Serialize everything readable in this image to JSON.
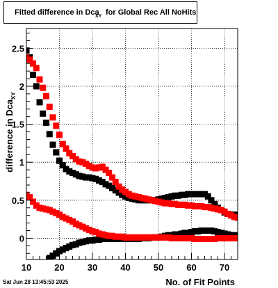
{
  "title": {
    "main": "Fitted difference in Dca",
    "sub": "XY",
    "rest": " for Global Rec All NoHits"
  },
  "footer": {
    "date": "Sat Jun 28 13:45:53 2025"
  },
  "colors": {
    "series_black": "#000000",
    "series_red": "#ff0000",
    "grid": "#000000",
    "frame": "#000000"
  },
  "chart_data": {
    "type": "scatter",
    "title": "Fitted difference in Dca XY for Global Rec All NoHits",
    "xlabel": "No. of Fit Points",
    "ylabel": "difference in Dca",
    "ylabel_sub": "XY",
    "xlim": [
      10,
      74
    ],
    "ylim": [
      -0.28,
      2.76
    ],
    "xticks": [
      10,
      20,
      30,
      40,
      50,
      60,
      70
    ],
    "yticks": [
      0,
      0.5,
      1,
      1.5,
      2,
      2.5
    ],
    "ytick_labels": [
      "0",
      "0.5",
      "1",
      "1.5",
      "2",
      "2.5"
    ],
    "grid": true,
    "marker": "square",
    "series": [
      {
        "color": "#000000",
        "x": [
          10,
          11,
          12,
          13,
          14,
          15,
          16,
          17,
          18,
          19,
          20,
          21,
          22,
          23,
          24,
          25,
          26,
          27,
          28,
          29,
          30,
          31,
          32,
          33,
          34,
          35,
          36,
          37,
          38,
          39,
          40,
          41,
          42,
          43,
          44,
          45,
          46,
          47,
          48,
          49,
          50,
          51,
          52,
          53,
          54,
          55,
          56,
          57,
          58,
          59,
          60,
          61,
          62,
          63,
          64,
          65,
          66,
          67,
          68,
          69,
          70,
          71,
          72,
          73,
          74
        ],
        "values": [
          2.47,
          2.38,
          2.15,
          2.0,
          1.79,
          1.64,
          1.52,
          1.37,
          1.23,
          1.13,
          1.02,
          0.96,
          0.91,
          0.88,
          0.86,
          0.84,
          0.82,
          0.81,
          0.8,
          0.8,
          0.79,
          0.78,
          0.76,
          0.74,
          0.71,
          0.69,
          0.66,
          0.63,
          0.6,
          0.57,
          0.55,
          0.53,
          0.52,
          0.51,
          0.5,
          0.5,
          0.5,
          0.5,
          0.5,
          0.5,
          0.51,
          0.52,
          0.53,
          0.54,
          0.55,
          0.56,
          0.56,
          0.57,
          0.57,
          0.58,
          0.58,
          0.58,
          0.58,
          0.58,
          0.58,
          0.55,
          0.5,
          0.45,
          0.4,
          0.37,
          0.34,
          0.32,
          0.31,
          0.31,
          0.3
        ]
      },
      {
        "color": "#000000",
        "x": [
          17,
          18,
          19,
          20,
          21,
          22,
          23,
          24,
          25,
          26,
          27,
          28,
          29,
          30,
          31,
          32,
          33,
          34,
          35,
          36,
          37,
          38,
          39,
          40,
          41,
          42,
          43,
          44,
          45,
          46,
          47,
          48,
          49,
          50,
          51,
          52,
          53,
          54,
          55,
          56,
          57,
          58,
          59,
          60,
          61,
          62,
          63,
          64,
          65,
          66,
          67,
          68,
          69,
          70,
          71,
          72,
          73,
          74
        ],
        "values": [
          -0.26,
          -0.23,
          -0.2,
          -0.17,
          -0.15,
          -0.13,
          -0.11,
          -0.09,
          -0.08,
          -0.06,
          -0.05,
          -0.04,
          -0.03,
          -0.03,
          -0.02,
          -0.02,
          -0.01,
          -0.01,
          -0.01,
          -0.01,
          -0.01,
          -0.01,
          -0.01,
          -0.01,
          -0.01,
          -0.01,
          -0.01,
          -0.01,
          0.0,
          0.0,
          0.0,
          0.01,
          0.01,
          0.01,
          0.02,
          0.03,
          0.04,
          0.04,
          0.05,
          0.05,
          0.06,
          0.07,
          0.07,
          0.08,
          0.09,
          0.09,
          0.1,
          0.1,
          0.1,
          0.1,
          0.09,
          0.08,
          0.07,
          0.06,
          0.05,
          0.04,
          0.04,
          0.04
        ]
      },
      {
        "color": "#ff0000",
        "x": [
          10,
          11,
          12,
          13,
          14,
          15,
          16,
          17,
          18,
          19,
          20,
          21,
          22,
          23,
          24,
          25,
          26,
          27,
          28,
          29,
          30,
          31,
          32,
          33,
          34,
          35,
          36,
          37,
          38,
          39,
          40,
          41,
          42,
          43,
          44,
          45,
          46,
          47,
          48,
          49,
          50,
          51,
          52,
          53,
          54,
          55,
          56,
          57,
          58,
          59,
          60,
          61,
          62,
          63,
          64,
          65,
          66,
          67,
          68,
          69,
          70,
          71,
          72,
          73,
          74
        ],
        "values": [
          2.38,
          2.35,
          2.3,
          2.24,
          2.09,
          1.98,
          1.87,
          1.73,
          1.59,
          1.48,
          1.36,
          1.24,
          1.18,
          1.12,
          1.08,
          1.04,
          1.01,
          1.0,
          0.98,
          0.95,
          0.93,
          0.92,
          0.93,
          0.94,
          0.9,
          0.86,
          0.8,
          0.74,
          0.68,
          0.64,
          0.61,
          0.58,
          0.56,
          0.55,
          0.54,
          0.53,
          0.52,
          0.51,
          0.5,
          0.49,
          0.48,
          0.47,
          0.46,
          0.46,
          0.45,
          0.45,
          0.44,
          0.44,
          0.44,
          0.43,
          0.43,
          0.42,
          0.42,
          0.42,
          0.41,
          0.41,
          0.4,
          0.39,
          0.38,
          0.37,
          0.35,
          0.32,
          0.3,
          0.28,
          0.27
        ]
      },
      {
        "color": "#ff0000",
        "x": [
          10,
          11,
          12,
          13,
          14,
          15,
          16,
          17,
          18,
          19,
          20,
          21,
          22,
          23,
          24,
          25,
          26,
          27,
          28,
          29,
          30,
          31,
          32,
          33,
          34,
          35,
          36,
          37,
          38,
          39,
          40,
          41,
          42,
          43,
          44,
          45,
          46,
          47,
          48,
          49,
          50,
          51,
          52,
          53,
          54,
          55,
          56,
          57,
          58,
          59,
          60,
          61,
          62,
          63,
          64,
          65,
          66,
          67,
          68,
          69,
          70,
          71,
          72,
          73,
          74
        ],
        "values": [
          0.57,
          0.54,
          0.48,
          0.43,
          0.4,
          0.39,
          0.38,
          0.37,
          0.35,
          0.33,
          0.31,
          0.28,
          0.26,
          0.24,
          0.22,
          0.19,
          0.17,
          0.15,
          0.13,
          0.11,
          0.09,
          0.08,
          0.06,
          0.05,
          0.04,
          0.03,
          0.03,
          0.02,
          0.02,
          0.02,
          0.01,
          0.01,
          0.01,
          0.01,
          0.01,
          0.01,
          0.01,
          0.01,
          0.01,
          0.01,
          0.01,
          0.01,
          0.01,
          0.01,
          0.0,
          0.0,
          0.0,
          0.0,
          0.0,
          0.0,
          0.0,
          -0.01,
          -0.01,
          -0.01,
          -0.01,
          -0.01,
          -0.01,
          -0.01,
          0.0,
          0.0,
          0.0,
          0.0,
          0.0,
          0.0,
          0.0
        ]
      }
    ]
  }
}
